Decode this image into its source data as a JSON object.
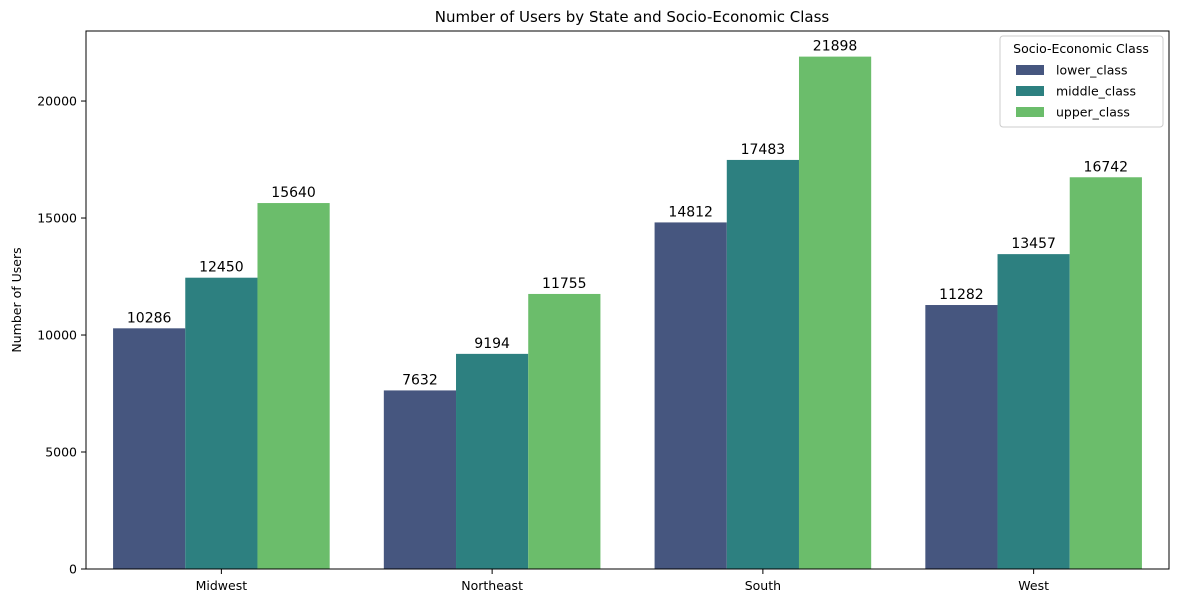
{
  "chart_data": {
    "type": "bar",
    "title": "Number of Users by State and Socio-Economic Class",
    "xlabel": "",
    "ylabel": "Number of Users",
    "categories": [
      "Midwest",
      "Northeast",
      "South",
      "West"
    ],
    "series": [
      {
        "name": "lower_class",
        "color": "#46567f",
        "values": [
          10286,
          7632,
          14812,
          11282
        ]
      },
      {
        "name": "middle_class",
        "color": "#2d8080",
        "values": [
          12450,
          9194,
          17483,
          13457
        ]
      },
      {
        "name": "upper_class",
        "color": "#6bbd6b",
        "values": [
          15640,
          11755,
          21898,
          16742
        ]
      }
    ],
    "ylim": [
      0,
      22993
    ],
    "yticks": [
      0,
      5000,
      10000,
      15000,
      20000
    ],
    "grid": false,
    "legend": {
      "title": "Socio-Economic Class",
      "placement": "top-right"
    }
  }
}
